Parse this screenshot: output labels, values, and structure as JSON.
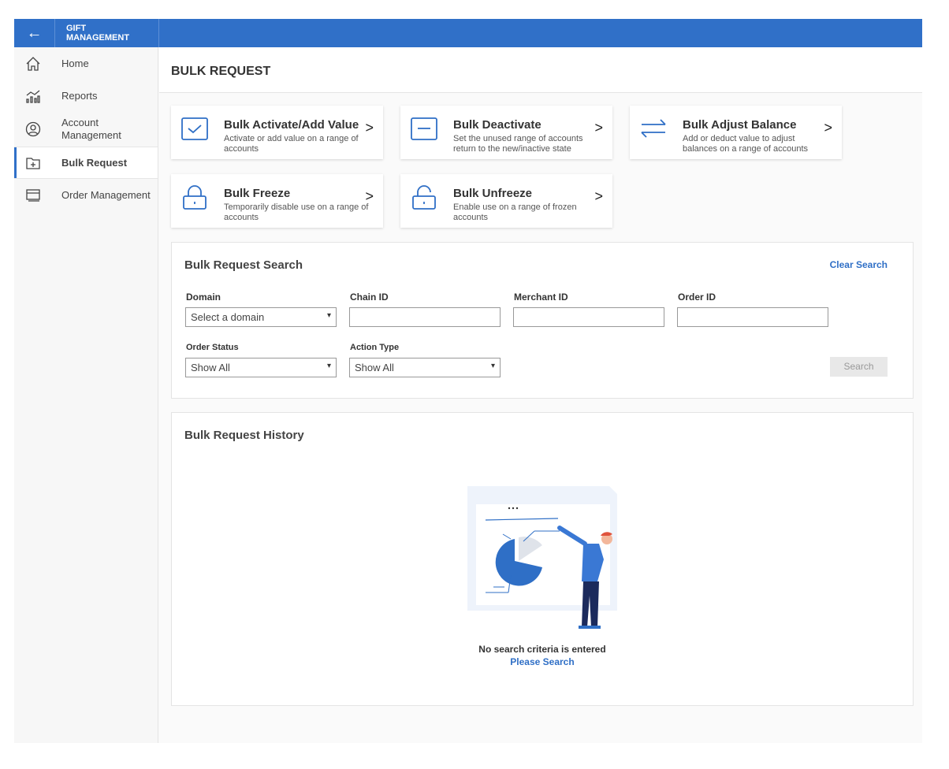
{
  "header": {
    "brand_line1": "GIFT",
    "brand_line2": "MANAGEMENT"
  },
  "sidebar": {
    "items": [
      {
        "label": "Home",
        "icon": "home-icon"
      },
      {
        "label": "Reports",
        "icon": "reports-icon"
      },
      {
        "label": "Account Management",
        "icon": "user-circle-icon"
      },
      {
        "label": "Bulk Request",
        "icon": "folder-plus-icon",
        "active": true
      },
      {
        "label": "Order Management",
        "icon": "card-icon"
      }
    ]
  },
  "page": {
    "title": "BULK REQUEST"
  },
  "cards": [
    {
      "title": "Bulk Activate/Add Value",
      "desc": "Activate or add value on a range of accounts",
      "icon": "checkbox-icon"
    },
    {
      "title": "Bulk Deactivate",
      "desc": "Set the unused range of accounts return to the new/inactive state",
      "icon": "minus-box-icon"
    },
    {
      "title": "Bulk Adjust Balance",
      "desc": "Add or deduct value to adjust balances on a range of accounts",
      "icon": "swap-arrows-icon"
    },
    {
      "title": "Bulk Freeze",
      "desc": "Temporarily disable use on a range of accounts",
      "icon": "lock-icon"
    },
    {
      "title": "Bulk Unfreeze",
      "desc": "Enable use on a range of frozen accounts",
      "icon": "unlock-icon"
    }
  ],
  "search": {
    "title": "Bulk Request Search",
    "clear": "Clear Search",
    "domain_label": "Domain",
    "domain_value": "Select a domain",
    "chain_label": "Chain ID",
    "merchant_label": "Merchant ID",
    "order_label": "Order ID",
    "status_label": "Order Status",
    "status_value": "Show All",
    "action_label": "Action Type",
    "action_value": "Show All",
    "button": "Search"
  },
  "history": {
    "title": "Bulk Request History",
    "empty": "No search criteria is entered",
    "link": "Please Search"
  },
  "colors": {
    "accent": "#3070c8"
  }
}
